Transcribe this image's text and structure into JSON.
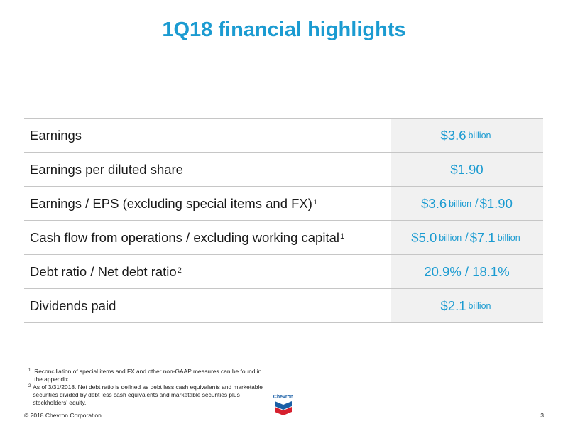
{
  "title": "1Q18 financial highlights",
  "rows": [
    {
      "label": "Earnings",
      "sup": "",
      "value": {
        "main": "$3.6",
        "unit": "billion"
      }
    },
    {
      "label": "Earnings per diluted share",
      "sup": "",
      "value": {
        "main": "$1.90"
      }
    },
    {
      "label": "Earnings / EPS (excluding special items and FX)",
      "sup": "1",
      "value": {
        "a": "$3.6",
        "a_unit": "billion",
        "sep": "/",
        "b": "$1.90"
      }
    },
    {
      "label": "Cash flow from operations / excluding working capital",
      "sup": "1",
      "value": {
        "a": "$5.0",
        "a_unit": "billion",
        "sep": "/",
        "b": "$7.1",
        "b_unit": "billion"
      }
    },
    {
      "label": "Debt ratio / Net debt ratio",
      "sup": "2",
      "value": {
        "main": "20.9% / 18.1%"
      }
    },
    {
      "label": "Dividends paid",
      "sup": "",
      "value": {
        "main": "$2.1",
        "unit": "billion"
      }
    }
  ],
  "footnotes": [
    {
      "num": "1",
      "text": "Reconciliation of special items and FX and other non-GAAP measures can be found in the appendix."
    },
    {
      "num": "2",
      "text": "As of 3/31/2018.  Net debt ratio is defined as debt less cash equivalents and marketable securities divided by debt less cash equivalents and marketable securities plus stockholders' equity."
    }
  ],
  "logo": {
    "text": "Chevron",
    "colors": {
      "blue": "#1a5fa6",
      "red": "#d6202e"
    }
  },
  "footer": {
    "copyright": "© 2018 Chevron Corporation",
    "page": "3"
  },
  "colors": {
    "accent": "#1b9bd1",
    "value_bg": "#f1f1f1",
    "rule": "#c6c6c6"
  }
}
